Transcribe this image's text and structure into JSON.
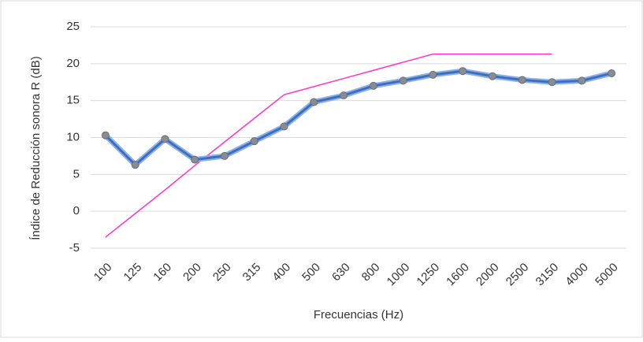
{
  "chart_data": {
    "type": "line",
    "x_label": "Frecuencias (Hz)",
    "y_label": "Índice de Reducción sonora R (dB)",
    "categories": [
      "100",
      "125",
      "160",
      "200",
      "250",
      "315",
      "400",
      "500",
      "630",
      "800",
      "1000",
      "1250",
      "1600",
      "2000",
      "2500",
      "3150",
      "4000",
      "5000"
    ],
    "series": [
      {
        "color": "#3b6fc4",
        "values": [
          10.3,
          6.3,
          9.8,
          7.0,
          7.5,
          9.5,
          11.5,
          14.8,
          15.7,
          17.0,
          17.7,
          18.5,
          19.0,
          18.3,
          17.8,
          17.5,
          17.7,
          18.7
        ],
        "markers": true
      },
      {
        "color": "#ff33cc",
        "values": [
          -3.5,
          -0.3,
          2.9,
          6.2,
          9.4,
          12.6,
          15.8,
          16.9,
          18.0,
          19.1,
          20.2,
          21.3,
          21.3,
          21.3,
          21.3,
          21.3,
          null,
          null
        ],
        "markers": false
      }
    ],
    "ylim": [
      -5,
      25
    ],
    "yticks": [
      -5,
      0,
      5,
      10,
      15,
      20,
      25
    ],
    "grid": true
  }
}
